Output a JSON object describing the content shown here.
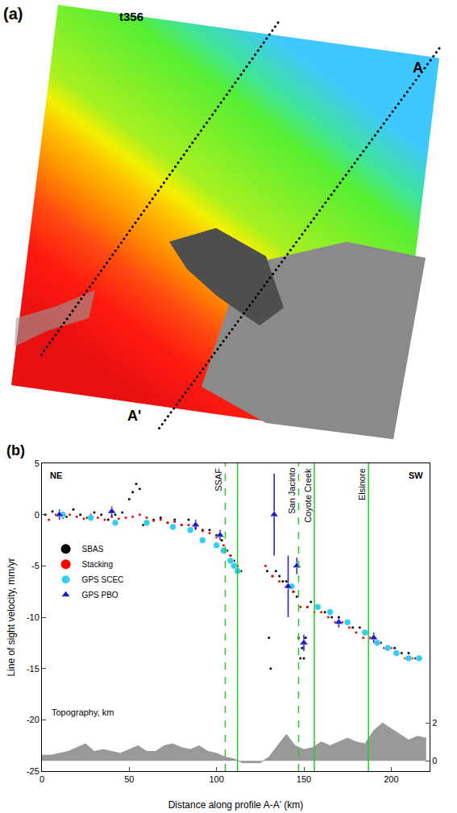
{
  "map": {
    "label": "(a)",
    "track": "t356",
    "profile_start": "A",
    "profile_end": "A'"
  },
  "chart_data": {
    "type": "scatter",
    "label": "(b)",
    "x_label": "Distance along profile A-A' (km)",
    "y_label": "Line of sight velocity, mm/yr",
    "xlim": [
      0,
      222
    ],
    "xticks": [
      0,
      50,
      100,
      150,
      200
    ],
    "ylim": [
      -25,
      5
    ],
    "yticks": [
      -25,
      -20,
      -15,
      -10,
      -5,
      0,
      5
    ],
    "y2lim": [
      -0.54,
      15.7
    ],
    "y2ticks": [
      0,
      2
    ],
    "grid": false,
    "legend": "upper left",
    "annotations": [
      {
        "text": "NE",
        "x": 8,
        "y": 3.8
      },
      {
        "text": "SW",
        "x": 214,
        "y": 3.8
      }
    ],
    "faults": [
      {
        "label": "SSAF",
        "lines": [
          {
            "x": 105,
            "line_style": "dashed"
          },
          {
            "x": 112,
            "line_style": "solid"
          }
        ]
      },
      {
        "label": "San Jacinto",
        "lines": [
          {
            "x": 147,
            "line_style": "dashed"
          }
        ]
      },
      {
        "label": "Coyote Creek",
        "lines": [
          {
            "x": 156,
            "line_style": "solid"
          }
        ]
      },
      {
        "label": "Elsinore",
        "lines": [
          {
            "x": 187,
            "line_style": "solid"
          }
        ]
      }
    ],
    "series": [
      {
        "name": "SBAS",
        "color": "#000000",
        "marker": "dot",
        "x": [
          2,
          6,
          10,
          14,
          18,
          22,
          26,
          30,
          34,
          38,
          42,
          46,
          50,
          52,
          54,
          56,
          58,
          60,
          64,
          68,
          72,
          76,
          80,
          84,
          88,
          92,
          96,
          100,
          103,
          106,
          108,
          110,
          112,
          114,
          129,
          130,
          131,
          132,
          134,
          136,
          138,
          140,
          142,
          144,
          146,
          147,
          148,
          149,
          150,
          151,
          152,
          154,
          158,
          162,
          166,
          170,
          174,
          178,
          182,
          186,
          190,
          194,
          198,
          202,
          206,
          210,
          214,
          216
        ],
        "values": [
          0,
          0.3,
          0,
          -0.2,
          0.5,
          0,
          -0.3,
          0.2,
          0,
          -0.5,
          0,
          0.2,
          1.5,
          2.2,
          3,
          2.5,
          -1,
          -0.8,
          -0.5,
          -0.3,
          -0.8,
          -0.5,
          -1,
          -0.5,
          -1.2,
          -1.5,
          -1.5,
          -2,
          -2.5,
          -3.5,
          -4,
          -4.5,
          -5,
          -5.5,
          -5.5,
          -12,
          -15,
          -6,
          -5.5,
          -6,
          -6.5,
          -6.5,
          -7,
          -7.5,
          -8,
          -12,
          -14,
          -13,
          -14,
          -12,
          -9,
          -8.5,
          -9,
          -9.5,
          -10,
          -10,
          -10.5,
          -11,
          -11,
          -11.5,
          -12,
          -12.5,
          -13,
          -13,
          -13.5,
          -13.5,
          -14,
          -14
        ]
      },
      {
        "name": "Stacking",
        "color": "#ff0000",
        "marker": "dot",
        "x": [
          4,
          8,
          12,
          16,
          20,
          24,
          28,
          32,
          36,
          40,
          44,
          48,
          52,
          56,
          60,
          64,
          68,
          72,
          76,
          80,
          84,
          88,
          92,
          96,
          100,
          104,
          108,
          112,
          128,
          132,
          136,
          140,
          144,
          148,
          152,
          156,
          160,
          164,
          168,
          172,
          176,
          180,
          184,
          188,
          192,
          196,
          200,
          204,
          208,
          212,
          216
        ],
        "values": [
          -0.5,
          0,
          -0.3,
          0,
          -0.2,
          -0.4,
          0,
          -0.3,
          -0.5,
          -0.2,
          -0.4,
          -0.3,
          -0.2,
          0,
          -0.3,
          -0.6,
          -0.5,
          -0.8,
          -0.7,
          -1,
          -1,
          -1.3,
          -1.6,
          -1.8,
          -2.2,
          -3,
          -4,
          -5,
          -5,
          -6,
          -6.5,
          -7,
          -7.5,
          -9,
          -9,
          -9.5,
          -9.5,
          -10,
          -10.5,
          -10.5,
          -11,
          -11.5,
          -12,
          -12,
          -12.5,
          -13,
          -13,
          -13.5,
          -14,
          -14,
          -14
        ]
      },
      {
        "name": "GPS SCEC",
        "color": "#33ccee",
        "marker": "circle",
        "x": [
          12,
          28,
          42,
          60,
          75,
          85,
          92,
          100,
          104,
          108,
          110,
          112,
          143,
          158,
          165,
          175,
          185,
          192,
          198,
          203,
          210,
          216
        ],
        "values": [
          0,
          -0.3,
          -0.8,
          -0.8,
          -1.2,
          -1.5,
          -2.5,
          -3,
          -3.5,
          -4.5,
          -5,
          -5.5,
          -7,
          -9,
          -9.5,
          -10.5,
          -11.5,
          -12.5,
          -13,
          -13.5,
          -14,
          -14
        ]
      },
      {
        "name": "GPS PBO",
        "color": "#1a1acc",
        "marker": "triangle",
        "x": [
          10,
          40,
          88,
          102,
          133,
          141,
          146,
          150,
          170,
          190
        ],
        "values": [
          0,
          0.3,
          -1,
          -2,
          0,
          -7,
          -5,
          -12.5,
          -10.5,
          -12
        ],
        "error": [
          0.5,
          0.5,
          0.5,
          0.5,
          4,
          3,
          0.8,
          0.8,
          0.5,
          0.5
        ]
      },
      {
        "name": "Topography, km",
        "color": "#999999",
        "type": "area",
        "axis": "y2",
        "x": [
          0,
          5,
          10,
          15,
          20,
          25,
          30,
          35,
          40,
          45,
          50,
          55,
          60,
          65,
          70,
          75,
          80,
          85,
          90,
          95,
          100,
          105,
          110,
          115,
          120,
          125,
          130,
          135,
          140,
          145,
          150,
          155,
          160,
          165,
          170,
          175,
          180,
          185,
          190,
          195,
          200,
          205,
          210,
          215,
          220
        ],
        "values": [
          0.3,
          0.3,
          0.4,
          0.5,
          0.7,
          0.9,
          0.5,
          0.6,
          0.5,
          0.4,
          0.6,
          0.8,
          0.5,
          0.5,
          0.8,
          0.9,
          0.7,
          0.6,
          0.8,
          0.5,
          0.4,
          0.2,
          0.1,
          -0.1,
          -0.1,
          -0.1,
          0.2,
          0.8,
          1.4,
          0.8,
          0.6,
          0.7,
          1.0,
          0.8,
          1.0,
          1.2,
          1.0,
          0.9,
          1.6,
          2.0,
          1.7,
          1.4,
          1.1,
          1.3,
          1.2
        ]
      }
    ]
  }
}
